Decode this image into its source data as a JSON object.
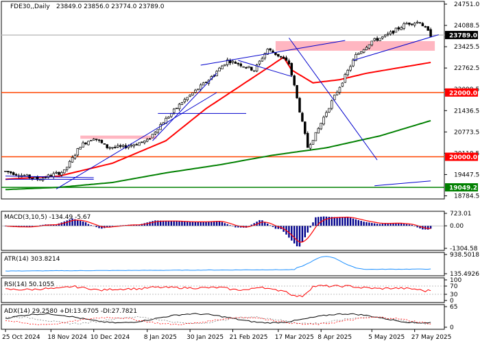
{
  "chart_data": [
    {
      "type": "candlestick",
      "symbol": "FDE30,,Daily",
      "ohlc_readout": {
        "open": "23849.0",
        "high": "23856.0",
        "low": "23774.0",
        "close": "23789.0"
      },
      "header_text": "23849.0 23856.0 23774.0 23789.0",
      "y_ticks": [
        "24751.0",
        "24088.5",
        "23425.5",
        "22762.5",
        "22099.5",
        "21436.5",
        "20773.5",
        "20110.5",
        "19447.5",
        "18784.5"
      ],
      "ylim": [
        18784.5,
        24751.0
      ],
      "x_ticks": [
        "25 Oct 2024",
        "18 Nov 2024",
        "10 Dec 2024",
        "8 Jan 2025",
        "30 Jan 2025",
        "21 Feb 2025",
        "17 Mar 2025",
        "8 Apr 2025",
        "5 May 2025",
        "27 May 2025"
      ],
      "x_tick_index": [
        0,
        17,
        33,
        53,
        69,
        85,
        102,
        118,
        137,
        153
      ],
      "n_bars": 160,
      "price_labels": [
        {
          "text": "23789.0",
          "value": 23789,
          "bg": "#000000",
          "fg": "#ffffff"
        },
        {
          "text": "22000.0",
          "value": 22000,
          "bg": "#ff0000",
          "fg": "#ffffff"
        },
        {
          "text": "20000.0",
          "value": 20000,
          "bg": "#ff0000",
          "fg": "#ffffff"
        },
        {
          "text": "19049.2",
          "value": 19049.2,
          "bg": "#008000",
          "fg": "#ffffff"
        }
      ],
      "horizontal_levels": [
        {
          "value": 22000,
          "color": "#ff4500"
        },
        {
          "value": 20000,
          "color": "#ff4500"
        },
        {
          "value": 19049.2,
          "color": "#008000"
        },
        {
          "value": 23789,
          "color": "#c0c0c0"
        }
      ],
      "zones": [
        {
          "from_index": 101,
          "to_index": 159,
          "low": 23300,
          "high": 23600,
          "color": "#ffb6c1"
        },
        {
          "from_index": 28,
          "to_index": 55,
          "low": 20560,
          "high": 20660,
          "color": "#ffb6c1"
        }
      ],
      "trendlines": [
        {
          "points": [
            [
              0,
              19300
            ],
            [
              33,
              19300
            ]
          ]
        },
        {
          "points": [
            [
              0,
              19400
            ],
            [
              33,
              19350
            ]
          ]
        },
        {
          "points": [
            [
              19,
              19000
            ],
            [
              79,
              22000
            ]
          ]
        },
        {
          "points": [
            [
              55,
              20500
            ],
            [
              79,
              22600
            ]
          ]
        },
        {
          "points": [
            [
              87,
              23000
            ],
            [
              107,
              22500
            ]
          ]
        },
        {
          "points": [
            [
              73,
              22850
            ],
            [
              127,
              23620
            ]
          ]
        },
        {
          "points": [
            [
              57,
              21350
            ],
            [
              90,
              21350
            ]
          ]
        },
        {
          "points": [
            [
              138,
              19100
            ],
            [
              159,
              19250
            ]
          ]
        },
        {
          "points": [
            [
              106,
              23700
            ],
            [
              139,
              19900
            ]
          ]
        },
        {
          "points": [
            [
              130,
              23000
            ],
            [
              162,
              23800
            ]
          ]
        }
      ],
      "ma_series": [
        {
          "color": "#ff0000",
          "anchors": [
            [
              0,
              19300
            ],
            [
              20,
              19400
            ],
            [
              40,
              19800
            ],
            [
              60,
              20500
            ],
            [
              75,
              21500
            ],
            [
              95,
              22600
            ],
            [
              104,
              23100
            ],
            [
              107,
              22700
            ],
            [
              115,
              22300
            ],
            [
              125,
              22400
            ],
            [
              135,
              22600
            ],
            [
              160,
              22950
            ]
          ]
        },
        {
          "color": "#008000",
          "anchors": [
            [
              0,
              18980
            ],
            [
              20,
              19050
            ],
            [
              40,
              19200
            ],
            [
              60,
              19500
            ],
            [
              80,
              19750
            ],
            [
              100,
              20050
            ],
            [
              120,
              20280
            ],
            [
              140,
              20650
            ],
            [
              160,
              21150
            ]
          ]
        }
      ],
      "price_anchors": [
        [
          0,
          19550
        ],
        [
          12,
          19300
        ],
        [
          22,
          19550
        ],
        [
          28,
          20350
        ],
        [
          33,
          20600
        ],
        [
          38,
          20300
        ],
        [
          44,
          20300
        ],
        [
          53,
          20500
        ],
        [
          58,
          21000
        ],
        [
          66,
          21700
        ],
        [
          76,
          22400
        ],
        [
          83,
          23000
        ],
        [
          87,
          22900
        ],
        [
          93,
          22700
        ],
        [
          98,
          23350
        ],
        [
          103,
          23100
        ],
        [
          106,
          22900
        ],
        [
          108,
          22200
        ],
        [
          111,
          21050
        ],
        [
          113,
          20300
        ],
        [
          116,
          20700
        ],
        [
          120,
          21400
        ],
        [
          126,
          22350
        ],
        [
          131,
          23150
        ],
        [
          137,
          23600
        ],
        [
          142,
          23750
        ],
        [
          150,
          24150
        ],
        [
          155,
          24200
        ],
        [
          159,
          23789
        ]
      ]
    },
    {
      "type": "histogram",
      "label": "MACD(3,10,5) -134.49 -5.67",
      "y_ticks": [
        "723.01",
        "0.00",
        "-1304.58"
      ],
      "ylim": [
        -1304.58,
        723.01
      ]
    },
    {
      "type": "line",
      "label": "ATR(14) 303.8214",
      "y_ticks": [
        "938.5018",
        "135.4926"
      ],
      "ylim": [
        135.4926,
        938.5018
      ]
    },
    {
      "type": "line",
      "label": "RSI(14) 50.1055",
      "y_ticks": [
        "100",
        "70",
        "30",
        "0"
      ],
      "ylim": [
        0,
        100
      ]
    },
    {
      "type": "line",
      "label": "ADX(14) 29.2580 +DI:13.6705 -DI:27.7821",
      "y_ticks": [
        "65",
        "0"
      ],
      "ylim": [
        0,
        65
      ]
    }
  ],
  "colors": {
    "bull": "#ffffff",
    "bear": "#000000",
    "candle_outline": "#000000",
    "macd_hist": "#00008b",
    "macd_signal": "#ff0000",
    "atr": "#1e90ff",
    "rsi": "#ff0000",
    "adx": "#000000",
    "plus_di": "#808080",
    "minus_di": "#ff0000",
    "trendline": "#0000cd",
    "grid_panel_border": "#000000"
  }
}
